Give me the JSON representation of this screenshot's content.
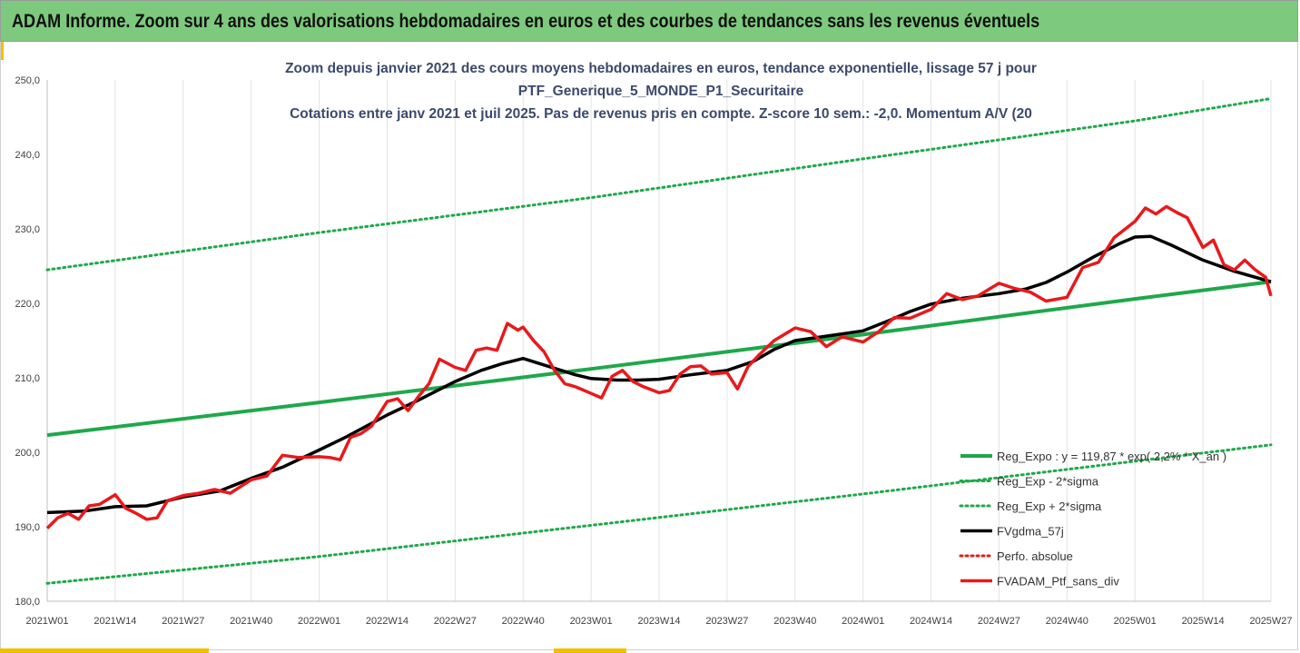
{
  "banner": {
    "title": "ADAM Informe. Zoom sur 4 ans des valorisations hebdomadaires en euros et des courbes de tendances sans les revenus éventuels"
  },
  "colors": {
    "banner_bg": "#7dc97d",
    "accent": "#f0c000",
    "trend_green": "#1fa84a",
    "red": "#e8191c",
    "black": "#000000",
    "title_text": "#3b4a6b"
  },
  "chart_data": {
    "type": "line",
    "title_lines": [
      "Zoom depuis janvier 2021 des cours moyens hebdomadaires  en euros, tendance exponentielle, lissage 57 j pour",
      "PTF_Generique_5_MONDE_P1_Securitaire",
      "Cotations entre janv 2021 et juil 2025. Pas de revenus pris en compte. Z-score 10 sem.: -2,0. Momentum A/V (20"
    ],
    "xlabel": "",
    "ylabel": "",
    "ylim": [
      180,
      250
    ],
    "yticks": [
      "180,0",
      "190,0",
      "200,0",
      "210,0",
      "220,0",
      "230,0",
      "240,0",
      "250,0"
    ],
    "xticks": [
      "2021W01",
      "2021W14",
      "2021W27",
      "2021W40",
      "2022W01",
      "2022W14",
      "2022W27",
      "2022W40",
      "2023W01",
      "2023W14",
      "2023W27",
      "2023W40",
      "2024W01",
      "2024W14",
      "2024W27",
      "2024W40",
      "2025W01",
      "2025W14",
      "2025W27"
    ],
    "grid": "vertical",
    "legend_position": "bottom-right",
    "series": [
      {
        "name": "Reg_Expo : y = 119,87 * exp( 2,2% * X_an )",
        "style": "solid-green",
        "x": [
          "2021W01",
          "2022W01",
          "2023W01",
          "2024W01",
          "2025W01",
          "2025W27"
        ],
        "values": [
          202.3,
          206.7,
          211.2,
          215.8,
          220.6,
          222.9
        ]
      },
      {
        "name": "Reg_Exp - 2*sigma",
        "style": "dotted-green",
        "x": [
          "2021W01",
          "2022W01",
          "2023W01",
          "2024W01",
          "2025W01",
          "2025W27"
        ],
        "values": [
          182.4,
          186.0,
          190.2,
          194.4,
          198.8,
          201.0
        ]
      },
      {
        "name": "Reg_Exp + 2*sigma",
        "style": "dotted-green",
        "x": [
          "2021W01",
          "2022W01",
          "2023W01",
          "2024W01",
          "2025W01",
          "2025W27"
        ],
        "values": [
          224.5,
          229.5,
          234.2,
          239.4,
          244.5,
          247.5
        ]
      },
      {
        "name": "FVgdma_57j",
        "style": "solid-black",
        "x": [
          "2021W01",
          "2021W08",
          "2021W14",
          "2021W20",
          "2021W27",
          "2021W34",
          "2021W40",
          "2021W46",
          "2022W01",
          "2022W06",
          "2022W10",
          "2022W14",
          "2022W20",
          "2022W27",
          "2022W32",
          "2022W36",
          "2022W40",
          "2022W45",
          "2022W50",
          "2023W01",
          "2023W06",
          "2023W10",
          "2023W14",
          "2023W20",
          "2023W27",
          "2023W32",
          "2023W36",
          "2023W40",
          "2023W46",
          "2024W01",
          "2024W06",
          "2024W10",
          "2024W14",
          "2024W20",
          "2024W27",
          "2024W32",
          "2024W36",
          "2024W40",
          "2024W45",
          "2024W50",
          "2025W01",
          "2025W04",
          "2025W08",
          "2025W14",
          "2025W20",
          "2025W27"
        ],
        "values": [
          191.9,
          192.1,
          192.7,
          192.8,
          194.0,
          194.8,
          196.5,
          198.0,
          200.3,
          202.0,
          203.5,
          205.0,
          207.0,
          209.5,
          211.0,
          211.9,
          212.6,
          211.5,
          210.4,
          209.9,
          209.7,
          209.7,
          209.8,
          210.4,
          211.0,
          212.2,
          213.8,
          215.0,
          215.6,
          216.3,
          217.7,
          218.9,
          219.9,
          220.7,
          221.3,
          221.9,
          222.8,
          224.2,
          226.2,
          228.0,
          228.9,
          229.0,
          227.8,
          225.8,
          224.3,
          222.9
        ]
      },
      {
        "name": "Perfo. absolue",
        "style": "dotted-red",
        "x": [],
        "values": []
      },
      {
        "name": "FVADAM_Ptf_sans_div",
        "style": "solid-red",
        "x": [
          "2021W01",
          "2021W03",
          "2021W05",
          "2021W07",
          "2021W09",
          "2021W11",
          "2021W14",
          "2021W16",
          "2021W18",
          "2021W20",
          "2021W22",
          "2021W24",
          "2021W27",
          "2021W30",
          "2021W33",
          "2021W36",
          "2021W40",
          "2021W43",
          "2021W46",
          "2021W49",
          "2022W01",
          "2022W03",
          "2022W05",
          "2022W07",
          "2022W09",
          "2022W11",
          "2022W14",
          "2022W16",
          "2022W18",
          "2022W20",
          "2022W22",
          "2022W24",
          "2022W27",
          "2022W29",
          "2022W31",
          "2022W33",
          "2022W35",
          "2022W37",
          "2022W39",
          "2022W40",
          "2022W42",
          "2022W44",
          "2022W46",
          "2022W48",
          "2022W50",
          "2023W01",
          "2023W03",
          "2023W05",
          "2023W07",
          "2023W09",
          "2023W11",
          "2023W14",
          "2023W16",
          "2023W18",
          "2023W20",
          "2023W22",
          "2023W24",
          "2023W27",
          "2023W29",
          "2023W31",
          "2023W33",
          "2023W36",
          "2023W40",
          "2023W43",
          "2023W46",
          "2023W49",
          "2024W01",
          "2024W04",
          "2024W07",
          "2024W10",
          "2024W14",
          "2024W17",
          "2024W20",
          "2024W23",
          "2024W27",
          "2024W30",
          "2024W33",
          "2024W36",
          "2024W40",
          "2024W43",
          "2024W46",
          "2024W49",
          "2025W01",
          "2025W03",
          "2025W05",
          "2025W07",
          "2025W09",
          "2025W11",
          "2025W14",
          "2025W16",
          "2025W18",
          "2025W20",
          "2025W22",
          "2025W24",
          "2025W26",
          "2025W27"
        ],
        "values": [
          189.8,
          191.2,
          191.8,
          191.0,
          192.8,
          193.0,
          194.3,
          192.5,
          191.8,
          191.0,
          191.2,
          193.5,
          194.2,
          194.5,
          195.0,
          194.5,
          196.3,
          196.8,
          199.6,
          199.3,
          199.4,
          199.3,
          199.0,
          202.0,
          202.5,
          203.5,
          206.8,
          207.2,
          205.6,
          207.5,
          209.2,
          212.5,
          211.4,
          211.0,
          213.7,
          214.0,
          213.7,
          217.3,
          216.4,
          216.8,
          215.0,
          213.5,
          211.0,
          209.2,
          208.8,
          207.9,
          207.3,
          210.2,
          211.0,
          209.5,
          208.8,
          208.0,
          208.3,
          210.5,
          211.5,
          211.6,
          210.5,
          210.7,
          208.5,
          211.5,
          213.0,
          215.0,
          216.7,
          216.2,
          214.2,
          215.5,
          214.8,
          216.2,
          218.1,
          218.0,
          219.2,
          221.3,
          220.5,
          221.0,
          222.7,
          222.0,
          221.5,
          220.3,
          220.8,
          224.8,
          225.5,
          228.8,
          231.0,
          232.8,
          232.0,
          233.0,
          232.2,
          231.5,
          227.5,
          228.5,
          225.2,
          224.5,
          225.8,
          224.5,
          223.5,
          221.0
        ]
      }
    ]
  }
}
